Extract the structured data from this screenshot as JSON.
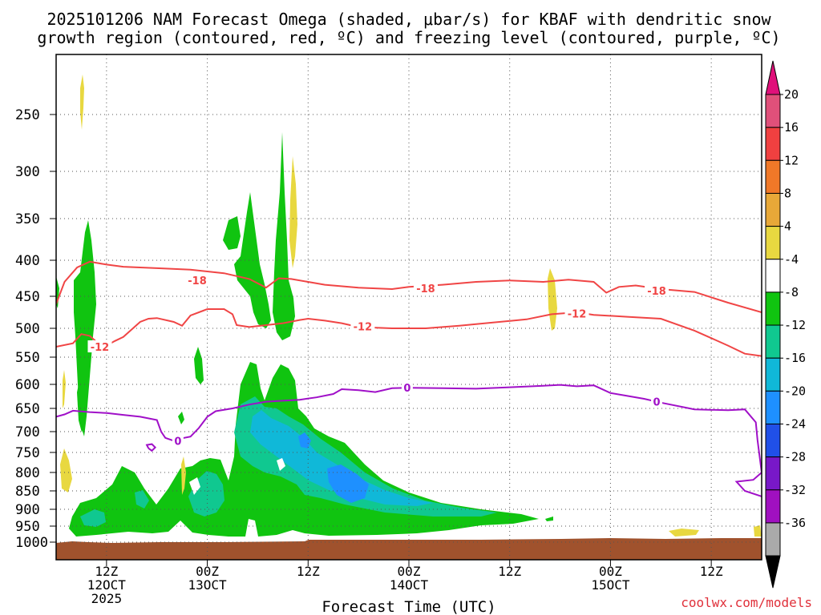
{
  "chart_data": {
    "type": "time-height contour",
    "title_line1": "2025101206 NAM Forecast Omega (shaded, μbar/s) for KBAF with dendritic snow",
    "title_line2": "growth region (contoured, red, ºC) and freezing level (contoured, purple, ºC)",
    "xlabel": "Forecast Time (UTC)",
    "credit": "coolwx.com/models",
    "credit_color": "#e0303a",
    "x_range_hours": [
      0,
      84
    ],
    "y_range_hpa": [
      200,
      1025
    ],
    "y_ticks": [
      250,
      300,
      350,
      400,
      450,
      500,
      550,
      600,
      650,
      700,
      750,
      800,
      850,
      900,
      950,
      1000
    ],
    "x_ticks": [
      {
        "hour": 6,
        "line1": "12Z",
        "line2": "12OCT",
        "line3": "2025"
      },
      {
        "hour": 18,
        "line1": "00Z",
        "line2": "13OCT",
        "line3": ""
      },
      {
        "hour": 30,
        "line1": "12Z",
        "line2": "",
        "line3": ""
      },
      {
        "hour": 42,
        "line1": "00Z",
        "line2": "14OCT",
        "line3": ""
      },
      {
        "hour": 54,
        "line1": "12Z",
        "line2": "",
        "line3": ""
      },
      {
        "hour": 66,
        "line1": "00Z",
        "line2": "15OCT",
        "line3": ""
      },
      {
        "hour": 78,
        "line1": "12Z",
        "line2": "",
        "line3": ""
      }
    ],
    "colorbar": {
      "labels": [
        "20",
        "16",
        "12",
        "8",
        "4",
        "-4",
        "-8",
        "-12",
        "-16",
        "-20",
        "-24",
        "-28",
        "-32",
        "-36"
      ],
      "colors": [
        "#e0507a",
        "#f04040",
        "#f07828",
        "#e8a838",
        "#e8d840",
        "#ffffff",
        "#10c410",
        "#10c890",
        "#10b8d8",
        "#1e90ff",
        "#2050e8",
        "#7818c8",
        "#a010c0",
        "#aaaaaa"
      ],
      "top_arrow_color": "#e0107a",
      "bottom_arrow_color": "#000000"
    },
    "contours": [
      {
        "name": "dendritic-minus18",
        "color": "#f04545",
        "label": "-18",
        "points": [
          [
            0,
            462
          ],
          [
            1,
            430
          ],
          [
            2.5,
            410
          ],
          [
            4,
            402
          ],
          [
            6,
            406
          ],
          [
            8,
            409
          ],
          [
            12,
            411
          ],
          [
            16,
            413
          ],
          [
            20,
            418
          ],
          [
            23,
            426
          ],
          [
            25,
            438
          ],
          [
            26.5,
            425
          ],
          [
            28,
            426
          ],
          [
            30,
            430
          ],
          [
            32,
            434
          ],
          [
            36,
            438
          ],
          [
            40,
            440
          ],
          [
            42,
            437
          ],
          [
            46,
            434
          ],
          [
            50,
            430
          ],
          [
            54,
            428
          ],
          [
            58,
            430
          ],
          [
            61,
            427
          ],
          [
            64,
            430
          ],
          [
            65.5,
            445
          ],
          [
            67,
            437
          ],
          [
            69,
            435
          ],
          [
            72,
            440
          ],
          [
            76,
            444
          ],
          [
            80,
            460
          ],
          [
            84,
            475
          ]
        ],
        "labels": [
          {
            "x": 16.8,
            "p": 428
          },
          {
            "x": 44,
            "p": 439
          },
          {
            "x": 71.5,
            "p": 442
          }
        ]
      },
      {
        "name": "dendritic-minus12",
        "color": "#f04545",
        "label": "-12",
        "points": [
          [
            0,
            532
          ],
          [
            2,
            526
          ],
          [
            3,
            510
          ],
          [
            4,
            513
          ],
          [
            5,
            526
          ],
          [
            6,
            530
          ],
          [
            7,
            522
          ],
          [
            8,
            515
          ],
          [
            9,
            502
          ],
          [
            10,
            490
          ],
          [
            11,
            485
          ],
          [
            12,
            484
          ],
          [
            14,
            490
          ],
          [
            15,
            496
          ],
          [
            16,
            480
          ],
          [
            18,
            470
          ],
          [
            20,
            470
          ],
          [
            21,
            478
          ],
          [
            21.5,
            495
          ],
          [
            23,
            498
          ],
          [
            25,
            495
          ],
          [
            27,
            492
          ],
          [
            29,
            487
          ],
          [
            30,
            485
          ],
          [
            32,
            488
          ],
          [
            34,
            492
          ],
          [
            36,
            498
          ],
          [
            40,
            500
          ],
          [
            44,
            500
          ],
          [
            48,
            496
          ],
          [
            52,
            491
          ],
          [
            56,
            486
          ],
          [
            59,
            478
          ],
          [
            62,
            475
          ],
          [
            64,
            479
          ],
          [
            68,
            482
          ],
          [
            72,
            485
          ],
          [
            76,
            504
          ],
          [
            80,
            530
          ],
          [
            82,
            544
          ],
          [
            84,
            548
          ]
        ],
        "labels": [
          {
            "x": 5.2,
            "p": 532
          },
          {
            "x": 36.5,
            "p": 497
          },
          {
            "x": 62,
            "p": 477
          }
        ]
      },
      {
        "name": "freezing-level-0",
        "color": "#a010c8",
        "label": "0",
        "points": [
          [
            0,
            668
          ],
          [
            1,
            663
          ],
          [
            2,
            655
          ],
          [
            4,
            658
          ],
          [
            6,
            660
          ],
          [
            8,
            664
          ],
          [
            10,
            668
          ],
          [
            12,
            675
          ],
          [
            12.5,
            700
          ],
          [
            13,
            715
          ],
          [
            14,
            722
          ],
          [
            15,
            716
          ],
          [
            16,
            712
          ],
          [
            17,
            692
          ],
          [
            18,
            668
          ],
          [
            19,
            656
          ],
          [
            21,
            650
          ],
          [
            23,
            642
          ],
          [
            25,
            636
          ],
          [
            27,
            634
          ],
          [
            29,
            632
          ],
          [
            31,
            627
          ],
          [
            33,
            620
          ],
          [
            34,
            610
          ],
          [
            36,
            612
          ],
          [
            38,
            616
          ],
          [
            40,
            608
          ],
          [
            42,
            607
          ],
          [
            46,
            608
          ],
          [
            50,
            609
          ],
          [
            54,
            606
          ],
          [
            58,
            603
          ],
          [
            60,
            601
          ],
          [
            62,
            604
          ],
          [
            64,
            602
          ],
          [
            66,
            618
          ],
          [
            68,
            624
          ],
          [
            70,
            630
          ],
          [
            72,
            638
          ],
          [
            76,
            652
          ],
          [
            80,
            654
          ],
          [
            82,
            652
          ],
          [
            83.3,
            680
          ],
          [
            83.5,
            720
          ],
          [
            84,
            800
          ],
          [
            83,
            820
          ],
          [
            81,
            825
          ],
          [
            82,
            850
          ],
          [
            84,
            865
          ]
        ],
        "labels": [
          {
            "x": 41.8,
            "p": 607
          },
          {
            "x": 71.5,
            "p": 636
          },
          {
            "x": 14.5,
            "p": 722
          }
        ]
      },
      {
        "name": "freezing-level-0-small",
        "color": "#a010c8",
        "label": "",
        "points": [
          [
            11,
            740
          ],
          [
            10.8,
            732
          ],
          [
            11.4,
            730
          ],
          [
            11.8,
            738
          ],
          [
            11.4,
            746
          ],
          [
            11,
            740
          ]
        ],
        "labels": []
      }
    ],
    "omega_regions_note": "shaded omega bands drawn with the colorbar scale"
  }
}
